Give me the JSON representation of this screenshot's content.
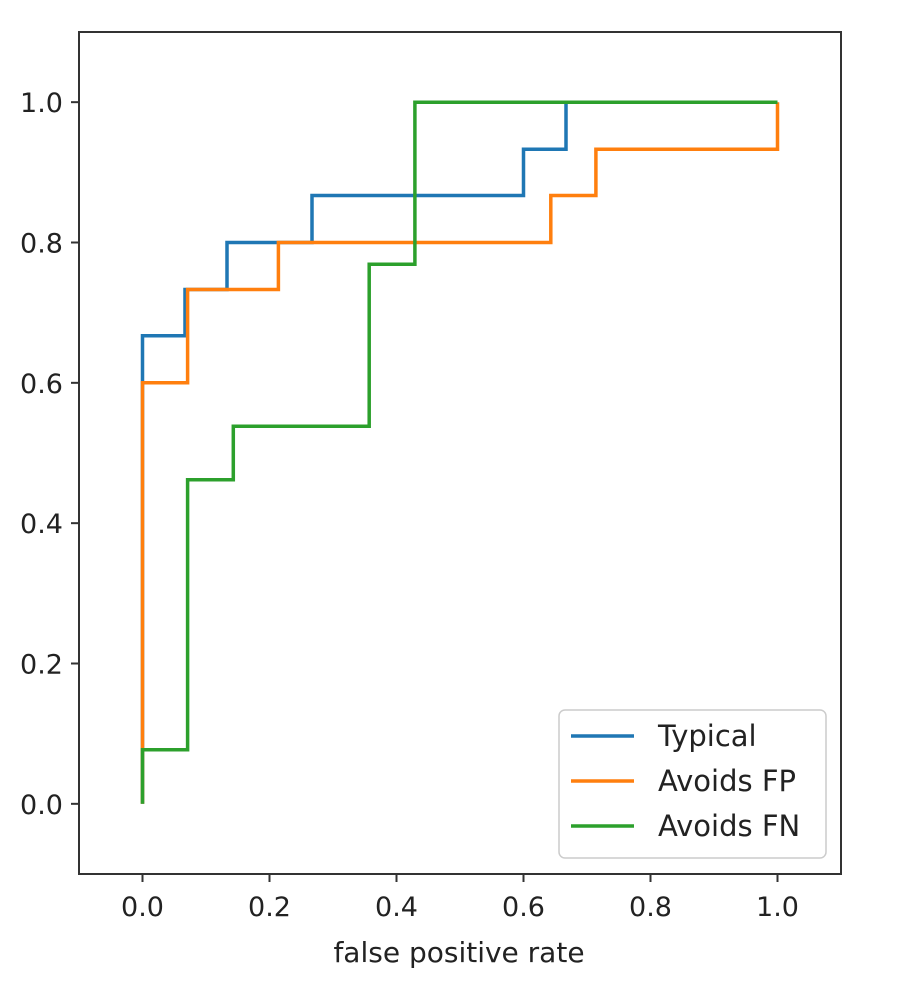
{
  "chart_data": {
    "type": "line",
    "title": "",
    "xlabel": "false positive rate",
    "ylabel": "",
    "xlim": [
      -0.1,
      1.1
    ],
    "ylim": [
      -0.1,
      1.1
    ],
    "xticks": [
      "0.0",
      "0.2",
      "0.4",
      "0.6",
      "0.8",
      "1.0"
    ],
    "yticks": [
      "0.0",
      "0.2",
      "0.4",
      "0.6",
      "0.8",
      "1.0"
    ],
    "grid": false,
    "legend_position": "bottom-right",
    "series": [
      {
        "name": "Typical",
        "color": "#1f77b4",
        "step": true,
        "x": [
          0.0,
          0.0,
          0.067,
          0.067,
          0.133,
          0.133,
          0.267,
          0.267,
          0.6,
          0.6,
          0.667,
          0.667,
          1.0
        ],
        "y": [
          0.0,
          0.667,
          0.667,
          0.733,
          0.733,
          0.8,
          0.8,
          0.867,
          0.867,
          0.933,
          0.933,
          1.0,
          1.0
        ]
      },
      {
        "name": "Avoids FP",
        "color": "#ff7f0e",
        "step": true,
        "x": [
          0.0,
          0.0,
          0.071,
          0.071,
          0.214,
          0.214,
          0.643,
          0.643,
          0.714,
          0.714,
          1.0,
          1.0
        ],
        "y": [
          0.0,
          0.6,
          0.6,
          0.733,
          0.733,
          0.8,
          0.8,
          0.867,
          0.867,
          0.933,
          0.933,
          1.0
        ]
      },
      {
        "name": "Avoids FN",
        "color": "#2ca02c",
        "step": true,
        "x": [
          0.0,
          0.0,
          0.071,
          0.071,
          0.143,
          0.143,
          0.357,
          0.357,
          0.429,
          0.429,
          1.0
        ],
        "y": [
          0.0,
          0.077,
          0.077,
          0.462,
          0.462,
          0.538,
          0.538,
          0.769,
          0.769,
          1.0,
          1.0
        ]
      }
    ]
  }
}
